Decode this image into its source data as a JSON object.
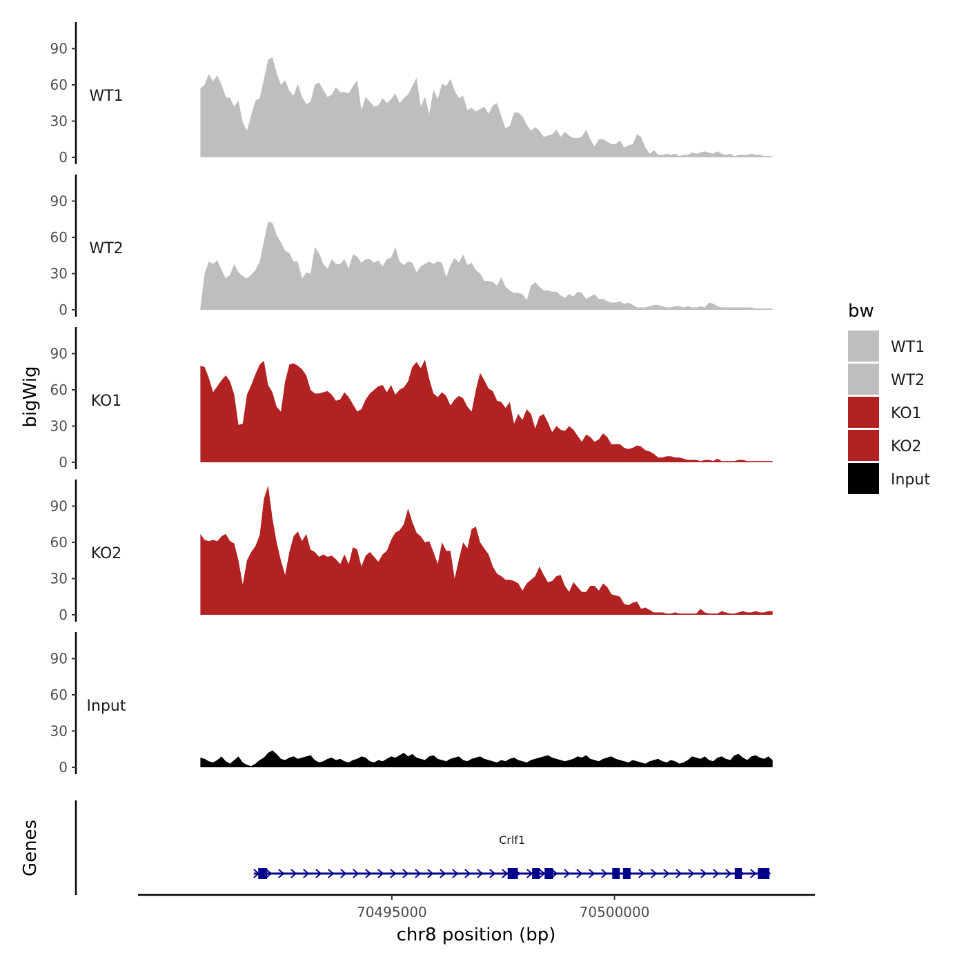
{
  "chart_data": {
    "type": "area",
    "xlabel": "chr8 position (bp)",
    "ylabel": "bigWig",
    "genes_label": "Genes",
    "x_ticks": [
      70495000,
      70500000
    ],
    "x_tick_labels": [
      "70495000",
      "70500000"
    ],
    "xlim": [
      70489300,
      70504500
    ],
    "region": [
      70490700,
      70503550
    ],
    "y_ticks": [
      0,
      30,
      60,
      90
    ],
    "y_tick_labels": [
      "0",
      "30",
      "60",
      "90"
    ],
    "ylim": [
      0,
      112
    ],
    "legend": {
      "title": "bw",
      "items": [
        {
          "label": "WT1",
          "color": "#bebebe"
        },
        {
          "label": "WT2",
          "color": "#bebebe"
        },
        {
          "label": "KO1",
          "color": "#b22222"
        },
        {
          "label": "KO2",
          "color": "#b22222"
        },
        {
          "label": "Input",
          "color": "#000000"
        }
      ]
    },
    "series": [
      {
        "name": "WT1",
        "color": "#bebebe",
        "values": [
          57,
          60,
          69,
          63,
          68,
          60,
          50,
          49,
          42,
          47,
          29,
          22,
          35,
          47,
          49,
          65,
          81,
          83,
          70,
          60,
          64,
          55,
          51,
          61,
          50,
          44,
          46,
          60,
          62,
          56,
          50,
          52,
          58,
          54,
          54,
          53,
          59,
          64,
          39,
          50,
          46,
          42,
          43,
          49,
          45,
          48,
          53,
          45,
          49,
          52,
          59,
          66,
          42,
          50,
          36,
          56,
          48,
          61,
          59,
          65,
          55,
          49,
          51,
          39,
          41,
          38,
          40,
          42,
          36,
          43,
          45,
          34,
          24,
          26,
          37,
          37,
          34,
          27,
          22,
          25,
          22,
          17,
          18,
          19,
          23,
          17,
          21,
          18,
          16,
          16,
          17,
          23,
          15,
          9,
          15,
          15,
          13,
          11,
          11,
          14,
          8,
          10,
          11,
          19,
          17,
          8,
          3,
          6,
          2,
          2,
          3,
          2,
          3,
          1,
          2,
          2,
          4,
          3,
          4,
          5,
          4,
          3,
          5,
          3,
          2,
          3,
          1,
          2,
          2,
          2,
          3,
          2,
          2,
          1,
          1,
          1
        ]
      },
      {
        "name": "WT2",
        "color": "#bebebe",
        "values": [
          2,
          30,
          40,
          38,
          41,
          33,
          26,
          29,
          38,
          31,
          28,
          26,
          29,
          33,
          40,
          57,
          73,
          72,
          62,
          56,
          49,
          47,
          40,
          40,
          26,
          31,
          30,
          52,
          47,
          38,
          34,
          42,
          38,
          38,
          42,
          34,
          46,
          44,
          39,
          42,
          42,
          39,
          41,
          36,
          42,
          43,
          52,
          40,
          37,
          40,
          39,
          31,
          36,
          38,
          40,
          38,
          40,
          39,
          27,
          37,
          43,
          39,
          46,
          37,
          39,
          33,
          30,
          24,
          24,
          23,
          20,
          27,
          19,
          16,
          14,
          14,
          13,
          8,
          20,
          23,
          19,
          16,
          16,
          15,
          15,
          12,
          10,
          13,
          11,
          15,
          14,
          9,
          11,
          13,
          9,
          9,
          7,
          6,
          6,
          7,
          5,
          6,
          4,
          2,
          2,
          2,
          3,
          4,
          4,
          3,
          2,
          2,
          3,
          3,
          2,
          3,
          2,
          2,
          3,
          2,
          6,
          5,
          3,
          2,
          2,
          2,
          2,
          2,
          2,
          2,
          2,
          1,
          1,
          1,
          1,
          1
        ]
      },
      {
        "name": "KO1",
        "color": "#b22222",
        "values": [
          80,
          79,
          70,
          58,
          63,
          68,
          72,
          67,
          56,
          31,
          32,
          56,
          64,
          73,
          81,
          84,
          64,
          58,
          46,
          42,
          67,
          81,
          82,
          80,
          77,
          72,
          60,
          57,
          57,
          58,
          59,
          56,
          51,
          52,
          58,
          54,
          48,
          42,
          44,
          52,
          57,
          60,
          63,
          64,
          58,
          64,
          56,
          60,
          62,
          67,
          79,
          83,
          78,
          85,
          69,
          57,
          54,
          58,
          55,
          47,
          52,
          55,
          53,
          46,
          42,
          60,
          74,
          68,
          61,
          59,
          51,
          50,
          45,
          50,
          32,
          40,
          35,
          44,
          40,
          28,
          38,
          40,
          33,
          25,
          30,
          27,
          26,
          30,
          27,
          22,
          17,
          23,
          21,
          17,
          19,
          24,
          21,
          15,
          15,
          15,
          12,
          11,
          12,
          14,
          13,
          10,
          9,
          7,
          4,
          4,
          5,
          5,
          4,
          4,
          3,
          2,
          2,
          2,
          1,
          2,
          2,
          1,
          3,
          1,
          1,
          1,
          1,
          2,
          2,
          1,
          1,
          1,
          1,
          1,
          1,
          1
        ]
      },
      {
        "name": "KO2",
        "color": "#b22222",
        "values": [
          67,
          62,
          61,
          62,
          61,
          65,
          67,
          61,
          59,
          45,
          25,
          45,
          52,
          57,
          66,
          96,
          107,
          80,
          60,
          45,
          33,
          52,
          65,
          69,
          61,
          67,
          54,
          52,
          48,
          50,
          48,
          49,
          46,
          42,
          50,
          42,
          56,
          54,
          40,
          49,
          52,
          48,
          44,
          50,
          53,
          62,
          68,
          70,
          75,
          88,
          77,
          68,
          65,
          60,
          61,
          52,
          42,
          60,
          53,
          53,
          30,
          46,
          60,
          55,
          71,
          73,
          60,
          55,
          50,
          40,
          34,
          32,
          29,
          29,
          28,
          26,
          20,
          26,
          29,
          32,
          40,
          33,
          27,
          28,
          32,
          33,
          24,
          19,
          27,
          23,
          19,
          19,
          24,
          24,
          20,
          26,
          23,
          17,
          16,
          15,
          9,
          8,
          10,
          11,
          5,
          6,
          4,
          2,
          2,
          2,
          1,
          1,
          2,
          1,
          1,
          1,
          1,
          1,
          5,
          2,
          1,
          1,
          1,
          3,
          2,
          1,
          1,
          2,
          3,
          2,
          2,
          3,
          2,
          2,
          3,
          3
        ]
      },
      {
        "name": "Input",
        "color": "#000000",
        "values": [
          8,
          7,
          5,
          4,
          6,
          9,
          5,
          3,
          6,
          9,
          4,
          2,
          1,
          3,
          6,
          8,
          12,
          14,
          11,
          7,
          6,
          8,
          9,
          7,
          8,
          9,
          10,
          6,
          4,
          5,
          7,
          8,
          6,
          7,
          5,
          4,
          6,
          7,
          9,
          8,
          5,
          4,
          6,
          5,
          7,
          9,
          8,
          10,
          12,
          9,
          11,
          8,
          7,
          6,
          9,
          10,
          7,
          6,
          5,
          7,
          8,
          9,
          6,
          5,
          7,
          8,
          9,
          7,
          6,
          5,
          4,
          6,
          5,
          7,
          8,
          6,
          5,
          4,
          6,
          7,
          8,
          9,
          10,
          8,
          7,
          6,
          5,
          6,
          7,
          9,
          8,
          10,
          7,
          6,
          5,
          7,
          8,
          9,
          7,
          6,
          5,
          4,
          6,
          5,
          4,
          3,
          5,
          6,
          7,
          5,
          4,
          6,
          5,
          3,
          4,
          6,
          9,
          8,
          7,
          9,
          6,
          5,
          8,
          9,
          7,
          6,
          10,
          11,
          8,
          6,
          9,
          10,
          8,
          7,
          9,
          6
        ]
      }
    ],
    "gene_track": {
      "gene_name": "Crlf1",
      "color": "#00008b",
      "start": 70491900,
      "end": 70503500,
      "strand": "+",
      "exons": [
        [
          70492000,
          70492200
        ],
        [
          70497600,
          70497830
        ],
        [
          70498150,
          70498320
        ],
        [
          70498430,
          70498620
        ],
        [
          70499950,
          70500120
        ],
        [
          70500190,
          70500360
        ],
        [
          70502700,
          70502860
        ],
        [
          70503220,
          70503480
        ]
      ]
    }
  }
}
